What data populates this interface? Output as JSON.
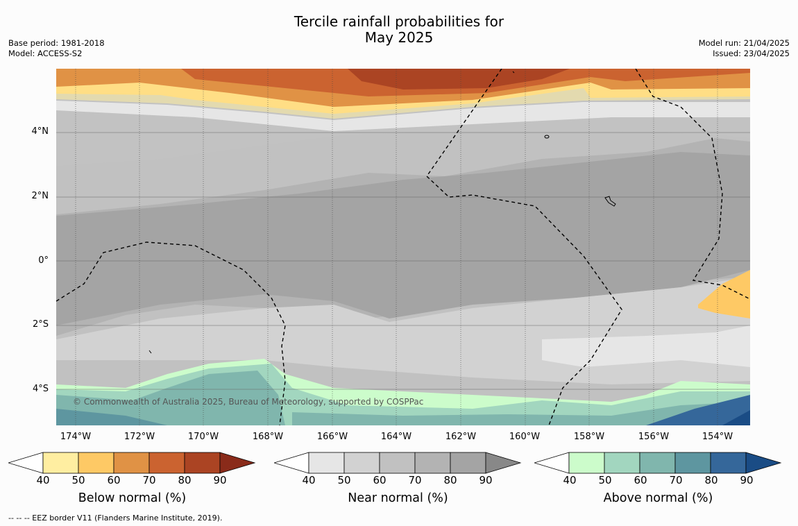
{
  "title_line1": "Tercile rainfall probabilities for",
  "title_line2": "May 2025",
  "meta_left": {
    "base_period": "Base period: 1981-2018",
    "model": "Model: ACCESS-S2"
  },
  "meta_right": {
    "model_run": "Model run: 21/04/2025",
    "issued": "Issued: 23/04/2025"
  },
  "copyright": "© Commonwealth of Australia 2025, Bureau of Meteorology, supported by COSPPac",
  "lat_labels": [
    "4°N",
    "2°N",
    "0°",
    "2°S",
    "4°S"
  ],
  "lon_labels": [
    "174°W",
    "172°W",
    "170°W",
    "168°W",
    "166°W",
    "164°W",
    "162°W",
    "160°W",
    "158°W",
    "156°W",
    "154°W"
  ],
  "legends": [
    {
      "title": "Below normal (%)",
      "ticks": [
        "40",
        "50",
        "60",
        "70",
        "80",
        "90"
      ],
      "colors": [
        "#ffeea1",
        "#fec965",
        "#e09245",
        "#cb6330",
        "#ab4423",
        "#8a2b1a"
      ]
    },
    {
      "title": "Near normal (%)",
      "ticks": [
        "40",
        "50",
        "60",
        "70",
        "80",
        "90"
      ],
      "colors": [
        "#e6e6e6",
        "#d2d2d2",
        "#c1c1c1",
        "#b3b3b3",
        "#a4a4a4",
        "#888888"
      ]
    },
    {
      "title": "Above normal (%)",
      "ticks": [
        "40",
        "50",
        "60",
        "70",
        "80",
        "90"
      ],
      "colors": [
        "#ccfccb",
        "#a2d6bf",
        "#80b6ad",
        "#5e96a0",
        "#35679a",
        "#1a4c85"
      ]
    }
  ],
  "footnote": "--  --  -- EEZ border V11 (Flanders Marine Institute, 2019)."
}
